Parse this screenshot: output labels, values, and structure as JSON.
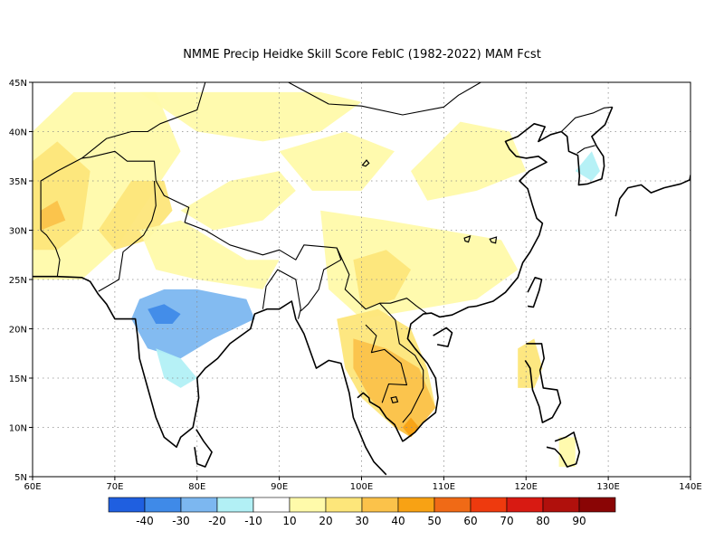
{
  "title": "NMME Precip Heidke Skill Score FebIC (1982-2022) MAM Fcst",
  "map": {
    "lon_range": [
      60,
      140
    ],
    "lat_range": [
      5,
      45
    ],
    "x_ticks": [
      "60E",
      "70E",
      "80E",
      "90E",
      "100E",
      "110E",
      "120E",
      "130E",
      "140E"
    ],
    "y_ticks": [
      "5N",
      "10N",
      "15N",
      "20N",
      "25N",
      "30N",
      "35N",
      "40N",
      "45N"
    ],
    "grid": true
  },
  "colorbar": {
    "colors": [
      "#1f5fe0",
      "#3f8ae8",
      "#7cb7f0",
      "#b2f0f5",
      "#ffffff",
      "#fffaaa",
      "#fde67a",
      "#fbc24a",
      "#f8a214",
      "#f06a16",
      "#ee3a0e",
      "#d81a12",
      "#b0100c",
      "#8a0505"
    ],
    "labels": [
      "-40",
      "-30",
      "-20",
      "-10",
      "10",
      "20",
      "30",
      "40",
      "50",
      "60",
      "70",
      "80",
      "90"
    ]
  },
  "regions": [
    {
      "name": "iran-afghan",
      "level": 20,
      "pts": [
        [
          60,
          25
        ],
        [
          60,
          40
        ],
        [
          65,
          44
        ],
        [
          75,
          44
        ],
        [
          78,
          38
        ],
        [
          74,
          33
        ],
        [
          70,
          28
        ],
        [
          66,
          25
        ]
      ]
    },
    {
      "name": "iran-core",
      "level": 30,
      "pts": [
        [
          60,
          28
        ],
        [
          60,
          37
        ],
        [
          63,
          39
        ],
        [
          67,
          36
        ],
        [
          66,
          30
        ],
        [
          63,
          28
        ]
      ]
    },
    {
      "name": "pakistan",
      "level": 30,
      "pts": [
        [
          68,
          30
        ],
        [
          72,
          35
        ],
        [
          76,
          35
        ],
        [
          77,
          32
        ],
        [
          74,
          29
        ],
        [
          70,
          28
        ]
      ]
    },
    {
      "name": "iran-south",
      "level": 40,
      "pts": [
        [
          61,
          30
        ],
        [
          61,
          32
        ],
        [
          63,
          33
        ],
        [
          64,
          31
        ]
      ]
    },
    {
      "name": "tibet-west",
      "level": 20,
      "pts": [
        [
          78,
          32
        ],
        [
          84,
          35
        ],
        [
          90,
          36
        ],
        [
          92,
          34
        ],
        [
          88,
          31
        ],
        [
          82,
          30
        ]
      ]
    },
    {
      "name": "mongolia-north",
      "level": 20,
      "pts": [
        [
          73,
          44
        ],
        [
          85,
          44
        ],
        [
          95,
          44
        ],
        [
          100,
          43
        ],
        [
          95,
          40
        ],
        [
          88,
          39
        ],
        [
          80,
          40
        ]
      ]
    },
    {
      "name": "china-west",
      "level": 20,
      "pts": [
        [
          90,
          38
        ],
        [
          98,
          40
        ],
        [
          104,
          38
        ],
        [
          100,
          34
        ],
        [
          94,
          34
        ]
      ]
    },
    {
      "name": "china-east",
      "level": 20,
      "pts": [
        [
          106,
          36
        ],
        [
          112,
          41
        ],
        [
          118,
          40
        ],
        [
          120,
          36
        ],
        [
          114,
          34
        ],
        [
          108,
          33
        ]
      ]
    },
    {
      "name": "south-china",
      "level": 20,
      "pts": [
        [
          95,
          32
        ],
        [
          103,
          31
        ],
        [
          110,
          30
        ],
        [
          117,
          29
        ],
        [
          119,
          26
        ],
        [
          114,
          23
        ],
        [
          107,
          22
        ],
        [
          100,
          21
        ],
        [
          96,
          24
        ]
      ]
    },
    {
      "name": "yunnan",
      "level": 30,
      "pts": [
        [
          99,
          27
        ],
        [
          103,
          28
        ],
        [
          106,
          26
        ],
        [
          104,
          23
        ],
        [
          100,
          22
        ]
      ]
    },
    {
      "name": "indochina",
      "level": 30,
      "pts": [
        [
          97,
          21
        ],
        [
          102,
          22
        ],
        [
          106,
          20
        ],
        [
          108,
          16
        ],
        [
          109,
          12
        ],
        [
          106,
          9
        ],
        [
          104,
          10
        ],
        [
          100,
          13
        ],
        [
          98,
          16
        ]
      ]
    },
    {
      "name": "cambodia-vietnam",
      "level": 40,
      "pts": [
        [
          99,
          19
        ],
        [
          103,
          18
        ],
        [
          107,
          16
        ],
        [
          109,
          12
        ],
        [
          106,
          9
        ],
        [
          104,
          10
        ],
        [
          101,
          13
        ],
        [
          99,
          16
        ]
      ]
    },
    {
      "name": "mekong-delta",
      "level": 50,
      "pts": [
        [
          105,
          10
        ],
        [
          106,
          11
        ],
        [
          107,
          10
        ],
        [
          106,
          9
        ]
      ]
    },
    {
      "name": "india-north",
      "level": 20,
      "pts": [
        [
          73,
          30
        ],
        [
          78,
          31
        ],
        [
          86,
          27
        ],
        [
          90,
          27
        ],
        [
          88,
          24
        ],
        [
          80,
          25
        ],
        [
          75,
          26
        ]
      ]
    },
    {
      "name": "india-central-dry",
      "level": -20,
      "pts": [
        [
          73,
          23
        ],
        [
          76,
          24
        ],
        [
          80,
          24
        ],
        [
          86,
          23
        ],
        [
          87,
          21
        ],
        [
          82,
          19
        ],
        [
          78,
          17
        ],
        [
          74,
          18
        ],
        [
          72,
          21
        ]
      ]
    },
    {
      "name": "india-central-strong",
      "level": -30,
      "pts": [
        [
          74,
          22
        ],
        [
          76,
          22.5
        ],
        [
          78,
          21.5
        ],
        [
          77,
          20.5
        ],
        [
          75,
          20.5
        ]
      ]
    },
    {
      "name": "india-south-dry",
      "level": -10,
      "pts": [
        [
          75,
          18
        ],
        [
          78,
          17
        ],
        [
          80,
          15
        ],
        [
          78,
          14
        ],
        [
          76,
          15
        ]
      ]
    },
    {
      "name": "philippines",
      "level": 30,
      "pts": [
        [
          119,
          18
        ],
        [
          121,
          19
        ],
        [
          122,
          16
        ],
        [
          121,
          14
        ],
        [
          119,
          14
        ]
      ]
    },
    {
      "name": "mindanao",
      "level": 20,
      "pts": [
        [
          124,
          9
        ],
        [
          126,
          9
        ],
        [
          126,
          6
        ],
        [
          124,
          6
        ]
      ]
    },
    {
      "name": "korea",
      "level": -10,
      "pts": [
        [
          126,
          36
        ],
        [
          128,
          38
        ],
        [
          129,
          36
        ],
        [
          128,
          35
        ]
      ]
    }
  ],
  "coastlines": [
    [
      [
        60,
        25.3
      ],
      [
        63,
        25.3
      ],
      [
        66,
        25.2
      ],
      [
        67,
        24.8
      ],
      [
        68,
        23.5
      ],
      [
        69,
        22.5
      ],
      [
        70,
        21
      ],
      [
        72.5,
        21
      ],
      [
        72.8,
        19
      ],
      [
        73,
        17
      ],
      [
        74,
        14
      ],
      [
        75,
        11
      ],
      [
        76,
        9
      ],
      [
        77.5,
        8
      ],
      [
        78,
        9
      ],
      [
        79.5,
        10
      ],
      [
        80.2,
        13
      ],
      [
        80,
        15
      ],
      [
        81,
        16
      ],
      [
        82.5,
        17
      ],
      [
        84,
        18.5
      ],
      [
        86.5,
        20
      ],
      [
        87,
        21.5
      ],
      [
        88.5,
        22
      ],
      [
        90,
        22
      ],
      [
        91.5,
        22.8
      ],
      [
        92,
        21
      ],
      [
        93,
        19.5
      ],
      [
        94.5,
        16
      ],
      [
        96,
        16.8
      ],
      [
        97.5,
        16.5
      ],
      [
        98.5,
        13.5
      ],
      [
        99,
        11
      ],
      [
        100.5,
        8
      ],
      [
        101.5,
        6.5
      ],
      [
        103,
        5.2
      ]
    ],
    [
      [
        99.5,
        13
      ],
      [
        100.2,
        13.5
      ],
      [
        100.9,
        13
      ],
      [
        101,
        12.6
      ],
      [
        102.2,
        12
      ],
      [
        103,
        11
      ],
      [
        104,
        10.3
      ],
      [
        105,
        8.6
      ],
      [
        105.2,
        8.7
      ],
      [
        106.5,
        9.5
      ],
      [
        107.5,
        10.5
      ],
      [
        109,
        11.5
      ],
      [
        109.3,
        13
      ],
      [
        109,
        15
      ],
      [
        108,
        16.5
      ],
      [
        106.5,
        18
      ],
      [
        105.6,
        19
      ],
      [
        106,
        20.5
      ],
      [
        107.5,
        21.5
      ],
      [
        108.5,
        21.6
      ],
      [
        109.5,
        21.2
      ],
      [
        111,
        21.4
      ],
      [
        113,
        22.2
      ],
      [
        114,
        22.3
      ],
      [
        116,
        22.8
      ],
      [
        117.5,
        23.7
      ],
      [
        119,
        25.2
      ],
      [
        119.6,
        26.7
      ],
      [
        120.5,
        27.8
      ],
      [
        121.6,
        29.5
      ],
      [
        122,
        30.7
      ],
      [
        121.3,
        31.2
      ],
      [
        120.8,
        32.5
      ],
      [
        120.2,
        34.2
      ],
      [
        119.2,
        35
      ],
      [
        120.4,
        36
      ],
      [
        122.5,
        36.9
      ],
      [
        121.5,
        37.5
      ],
      [
        120,
        37.3
      ],
      [
        118.8,
        37.5
      ],
      [
        118,
        38.2
      ],
      [
        117.5,
        39
      ],
      [
        119,
        39.5
      ],
      [
        121,
        40.8
      ],
      [
        122.3,
        40.5
      ],
      [
        121.5,
        39
      ],
      [
        123,
        39.7
      ],
      [
        124.3,
        40
      ]
    ],
    [
      [
        124.3,
        40
      ],
      [
        125,
        39.5
      ],
      [
        125.2,
        38
      ],
      [
        126.3,
        37.6
      ],
      [
        126.5,
        35.5
      ],
      [
        126.4,
        34.6
      ],
      [
        127.5,
        34.7
      ],
      [
        129.2,
        35.2
      ],
      [
        129.5,
        36.5
      ],
      [
        129.4,
        37.5
      ],
      [
        128.6,
        38.5
      ],
      [
        128,
        39.5
      ],
      [
        129.6,
        40.7
      ],
      [
        130.5,
        42.5
      ]
    ],
    [
      [
        130.9,
        31.4
      ],
      [
        131.4,
        33.2
      ],
      [
        132.4,
        34.3
      ],
      [
        134,
        34.6
      ],
      [
        135.2,
        33.8
      ],
      [
        136.8,
        34.3
      ],
      [
        138.8,
        34.7
      ],
      [
        139.9,
        35.1
      ],
      [
        140,
        35.6
      ]
    ],
    [
      [
        109.2,
        18.4
      ],
      [
        110.5,
        18.2
      ],
      [
        111,
        19.6
      ],
      [
        110.3,
        20.1
      ],
      [
        108.7,
        19.3
      ]
    ],
    [
      [
        120.2,
        22.3
      ],
      [
        120.9,
        22.2
      ],
      [
        121.6,
        23.9
      ],
      [
        121.9,
        25
      ],
      [
        121.1,
        25.2
      ],
      [
        120.2,
        23.7
      ]
    ],
    [
      [
        120,
        18.5
      ],
      [
        121.9,
        18.5
      ],
      [
        122.2,
        17
      ],
      [
        121.7,
        15.8
      ],
      [
        122.1,
        14
      ],
      [
        123.8,
        13.8
      ],
      [
        124.2,
        12.5
      ],
      [
        123.2,
        11
      ],
      [
        122,
        10.5
      ],
      [
        121.6,
        12.1
      ],
      [
        120.8,
        13.8
      ],
      [
        120.5,
        16
      ],
      [
        119.9,
        16.8
      ]
    ],
    [
      [
        122.5,
        8
      ],
      [
        123.5,
        7.8
      ],
      [
        124.2,
        7.2
      ],
      [
        125,
        6
      ],
      [
        126.1,
        6.3
      ],
      [
        126.5,
        7.5
      ],
      [
        125.8,
        9.5
      ],
      [
        124.8,
        9
      ],
      [
        123.5,
        8.6
      ]
    ],
    [
      [
        79.9,
        9.8
      ],
      [
        80.8,
        8.6
      ],
      [
        81.8,
        7.5
      ],
      [
        81,
        6
      ],
      [
        80,
        6.3
      ],
      [
        79.7,
        8
      ]
    ]
  ],
  "borders": [
    [
      [
        61,
        30
      ],
      [
        61,
        35
      ],
      [
        63,
        36
      ],
      [
        66,
        37.3
      ],
      [
        67,
        37.4
      ],
      [
        70,
        38
      ],
      [
        71.5,
        37
      ],
      [
        74.8,
        37
      ],
      [
        75,
        35
      ],
      [
        76,
        33.5
      ],
      [
        79,
        32.3
      ],
      [
        78.5,
        30.8
      ],
      [
        81,
        30
      ],
      [
        84,
        28.5
      ],
      [
        88,
        27.5
      ],
      [
        90,
        28
      ],
      [
        92,
        27
      ],
      [
        93,
        28.5
      ],
      [
        97,
        28.2
      ],
      [
        98.5,
        25.5
      ],
      [
        98,
        24
      ],
      [
        100.5,
        22
      ],
      [
        102.2,
        22.6
      ],
      [
        103.5,
        22.6
      ],
      [
        105.5,
        23.1
      ],
      [
        106.7,
        22.3
      ],
      [
        108,
        21.5
      ]
    ],
    [
      [
        68,
        23.8
      ],
      [
        70.5,
        25
      ],
      [
        71,
        27.8
      ],
      [
        73.5,
        29.5
      ],
      [
        74.5,
        31
      ],
      [
        75,
        32.5
      ],
      [
        74.8,
        35
      ]
    ],
    [
      [
        63,
        25.3
      ],
      [
        63.3,
        27
      ],
      [
        62.8,
        28.2
      ],
      [
        61.7,
        29.5
      ],
      [
        61,
        30
      ]
    ],
    [
      [
        66,
        37.3
      ],
      [
        69,
        39.3
      ],
      [
        72,
        40
      ],
      [
        74,
        40
      ],
      [
        75.5,
        40.8
      ],
      [
        80,
        42.2
      ],
      [
        81,
        45
      ],
      [
        82,
        45
      ]
    ],
    [
      [
        88,
        22
      ],
      [
        88.4,
        24.3
      ],
      [
        89.8,
        26
      ],
      [
        92,
        25
      ],
      [
        92.6,
        22
      ],
      [
        92.3,
        21
      ]
    ],
    [
      [
        97,
        28.2
      ],
      [
        97.5,
        27
      ],
      [
        95.4,
        26
      ],
      [
        94.8,
        24
      ],
      [
        93.5,
        22.5
      ],
      [
        92.6,
        21.8
      ]
    ],
    [
      [
        100.5,
        20.4
      ],
      [
        101.8,
        19.3
      ],
      [
        101.2,
        17.6
      ],
      [
        102.8,
        17.9
      ],
      [
        104.8,
        16.5
      ],
      [
        105.5,
        14.3
      ],
      [
        103.3,
        14.4
      ],
      [
        102.5,
        12.5
      ]
    ],
    [
      [
        102.2,
        22.6
      ],
      [
        104.1,
        20.9
      ],
      [
        104.6,
        18.5
      ],
      [
        106.5,
        17.3
      ],
      [
        107.5,
        15.8
      ],
      [
        107.5,
        14
      ],
      [
        106,
        11.5
      ],
      [
        105,
        10.5
      ]
    ],
    [
      [
        87,
        49
      ],
      [
        90,
        45.5
      ],
      [
        96,
        42.8
      ],
      [
        100,
        42.6
      ],
      [
        105,
        41.7
      ],
      [
        110,
        42.5
      ],
      [
        111.8,
        43.7
      ],
      [
        114.5,
        45
      ],
      [
        116,
        45.3
      ]
    ],
    [
      [
        124.3,
        40
      ],
      [
        126,
        41.4
      ],
      [
        128.2,
        41.9
      ],
      [
        129.5,
        42.4
      ],
      [
        130.5,
        42.5
      ]
    ],
    [
      [
        126.2,
        37.8
      ],
      [
        127.1,
        38.3
      ],
      [
        128.4,
        38.6
      ]
    ]
  ],
  "lakes": [
    [
      [
        100.1,
        36.6
      ],
      [
        100.6,
        37.1
      ],
      [
        100.9,
        36.8
      ],
      [
        100.5,
        36.5
      ]
    ],
    [
      [
        115.6,
        29.1
      ],
      [
        116.4,
        29.3
      ],
      [
        116.3,
        28.7
      ],
      [
        115.8,
        28.8
      ]
    ],
    [
      [
        112.5,
        29.2
      ],
      [
        113.2,
        29.4
      ],
      [
        113,
        28.8
      ],
      [
        112.6,
        28.9
      ]
    ],
    [
      [
        103.6,
        13
      ],
      [
        104.2,
        13.1
      ],
      [
        104.4,
        12.6
      ],
      [
        103.8,
        12.5
      ]
    ]
  ]
}
